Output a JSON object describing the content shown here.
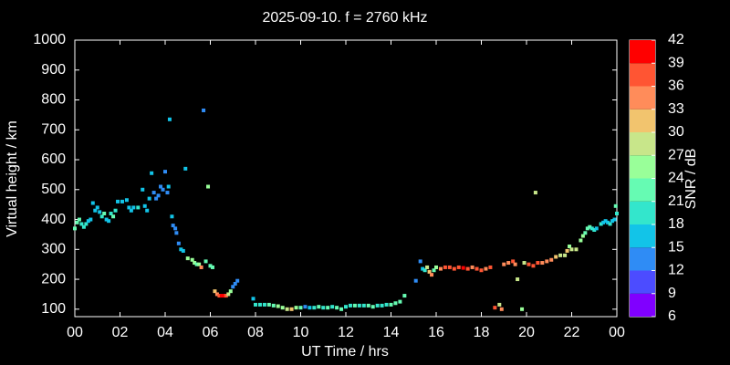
{
  "chart_data": {
    "type": "scatter",
    "title": "2025-09-10. f = 2760 kHz",
    "x_label": "UT Time / hrs",
    "y_label": "Virtual height / km",
    "xlim": [
      0,
      24
    ],
    "xticks": [
      {
        "value": 0,
        "label": "00"
      },
      {
        "value": 2,
        "label": "02"
      },
      {
        "value": 4,
        "label": "04"
      },
      {
        "value": 6,
        "label": "06"
      },
      {
        "value": 8,
        "label": "08"
      },
      10,
      12,
      14,
      16,
      18,
      20,
      22,
      {
        "value": 24,
        "label": "00"
      }
    ],
    "ylim": [
      75,
      1000
    ],
    "yticks": [
      100,
      200,
      300,
      400,
      500,
      600,
      700,
      800,
      900,
      1000
    ],
    "colorbar": {
      "label": "SNR / dB",
      "lim": [
        6,
        42
      ],
      "ticks": [
        6,
        9,
        12,
        15,
        18,
        21,
        24,
        27,
        30,
        33,
        36,
        39,
        42
      ],
      "colors": [
        "#8000ff",
        "#4c4cff",
        "#2f8cf5",
        "#12c4e8",
        "#33e6cc",
        "#66fbb3",
        "#99ff99",
        "#c8e68a",
        "#f2c46e",
        "#ff8c5a",
        "#ff5533",
        "#ff0000"
      ]
    },
    "x": [
      0.0,
      0.1,
      0.2,
      0.3,
      0.4,
      0.5,
      0.6,
      0.7,
      0.8,
      0.9,
      1.0,
      1.1,
      1.2,
      1.3,
      1.4,
      1.5,
      1.6,
      1.7,
      1.8,
      1.9,
      2.1,
      2.3,
      2.4,
      2.5,
      2.6,
      2.8,
      3.0,
      3.1,
      3.2,
      3.3,
      3.4,
      3.5,
      3.6,
      3.7,
      3.8,
      3.9,
      4.0,
      4.1,
      4.15,
      4.2,
      4.3,
      4.35,
      4.45,
      4.5,
      4.6,
      4.7,
      4.8,
      4.9,
      5.0,
      5.2,
      5.3,
      5.4,
      5.5,
      5.6,
      5.7,
      5.8,
      5.9,
      6.0,
      6.1,
      6.2,
      6.3,
      6.4,
      6.5,
      6.6,
      6.7,
      6.8,
      6.9,
      7.0,
      7.1,
      7.2,
      7.9,
      8.0,
      8.2,
      8.4,
      8.6,
      8.8,
      9.0,
      9.2,
      9.4,
      9.6,
      9.8,
      10.0,
      10.2,
      10.4,
      10.6,
      10.8,
      11.0,
      11.2,
      11.4,
      11.6,
      11.8,
      12.0,
      12.2,
      12.4,
      12.6,
      12.8,
      13.0,
      13.2,
      13.4,
      13.6,
      13.8,
      14.0,
      14.2,
      14.4,
      14.6,
      15.1,
      15.3,
      15.4,
      15.5,
      15.6,
      15.7,
      15.8,
      15.9,
      16.0,
      16.2,
      16.4,
      16.6,
      16.8,
      17.0,
      17.2,
      17.4,
      17.6,
      17.8,
      18.0,
      18.2,
      18.4,
      18.6,
      18.8,
      18.9,
      19.0,
      19.2,
      19.4,
      19.5,
      19.6,
      19.8,
      19.9,
      20.1,
      20.3,
      20.4,
      20.5,
      20.7,
      20.9,
      21.1,
      21.3,
      21.5,
      21.7,
      21.8,
      21.9,
      22.0,
      22.2,
      22.4,
      22.5,
      22.6,
      22.7,
      22.8,
      22.9,
      23.0,
      23.1,
      23.3,
      23.4,
      23.5,
      23.6,
      23.7,
      23.8,
      23.9,
      24.0,
      23.95
    ],
    "y": [
      370,
      390,
      400,
      385,
      375,
      385,
      395,
      400,
      455,
      430,
      440,
      425,
      410,
      420,
      400,
      395,
      420,
      410,
      430,
      460,
      460,
      465,
      440,
      430,
      440,
      440,
      500,
      445,
      430,
      470,
      555,
      490,
      470,
      480,
      510,
      500,
      560,
      490,
      510,
      735,
      410,
      380,
      370,
      355,
      320,
      300,
      295,
      570,
      270,
      265,
      255,
      250,
      250,
      240,
      765,
      260,
      510,
      245,
      240,
      160,
      150,
      145,
      145,
      145,
      145,
      150,
      160,
      175,
      185,
      195,
      135,
      115,
      115,
      115,
      115,
      112,
      110,
      105,
      100,
      100,
      105,
      105,
      108,
      105,
      105,
      108,
      105,
      105,
      108,
      105,
      100,
      108,
      112,
      112,
      112,
      112,
      112,
      108,
      112,
      112,
      115,
      115,
      120,
      125,
      145,
      195,
      260,
      235,
      230,
      240,
      225,
      215,
      230,
      240,
      235,
      240,
      240,
      235,
      240,
      238,
      235,
      240,
      235,
      230,
      235,
      240,
      105,
      115,
      100,
      250,
      255,
      260,
      250,
      200,
      100,
      255,
      250,
      245,
      490,
      255,
      255,
      260,
      265,
      275,
      280,
      280,
      295,
      310,
      300,
      300,
      330,
      345,
      355,
      370,
      375,
      370,
      365,
      370,
      385,
      390,
      395,
      390,
      385,
      395,
      400,
      420,
      445
    ],
    "c": [
      21,
      21,
      21,
      18,
      18,
      18,
      15,
      15,
      15,
      15,
      15,
      15,
      18,
      21,
      15,
      15,
      18,
      21,
      18,
      15,
      15,
      15,
      15,
      15,
      15,
      18,
      15,
      15,
      15,
      15,
      15,
      12,
      12,
      12,
      12,
      12,
      12,
      12,
      15,
      15,
      15,
      12,
      12,
      12,
      12,
      15,
      15,
      15,
      24,
      24,
      24,
      21,
      24,
      33,
      12,
      21,
      24,
      21,
      21,
      30,
      33,
      36,
      39,
      39,
      36,
      27,
      24,
      12,
      12,
      12,
      15,
      18,
      18,
      18,
      21,
      21,
      24,
      24,
      27,
      30,
      24,
      21,
      12,
      15,
      18,
      21,
      18,
      21,
      18,
      21,
      21,
      18,
      18,
      21,
      18,
      18,
      21,
      21,
      18,
      18,
      18,
      21,
      21,
      21,
      21,
      12,
      12,
      15,
      18,
      27,
      30,
      33,
      21,
      24,
      33,
      36,
      36,
      36,
      36,
      39,
      36,
      33,
      36,
      36,
      33,
      36,
      36,
      27,
      33,
      33,
      33,
      36,
      33,
      27,
      24,
      27,
      36,
      36,
      27,
      36,
      33,
      33,
      33,
      30,
      27,
      27,
      30,
      24,
      27,
      27,
      24,
      24,
      21,
      21,
      21,
      18,
      18,
      15,
      18,
      15,
      15,
      15,
      18,
      15,
      15,
      18,
      21
    ]
  }
}
